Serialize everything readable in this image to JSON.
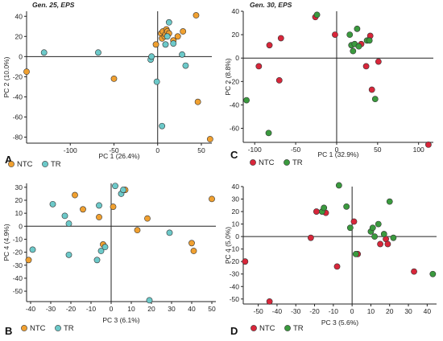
{
  "colors": {
    "NTC_orange": "#F0A030",
    "TR_teal": "#6CC9C9",
    "NTC_red": "#D8263A",
    "TR_green": "#3A9A3E",
    "axis": "#222222"
  },
  "chart_data": [
    {
      "panel_label": "A",
      "type": "scatter",
      "title": "Gen. 25, EPS",
      "xlabel": "PC 1 (26.4%)",
      "ylabel": "PC 2 (10.0%)",
      "xlim": [
        -150,
        62
      ],
      "ylim": [
        -86,
        45
      ],
      "xticks": [
        -100,
        -50,
        0,
        50
      ],
      "yticks": [
        40,
        20,
        0,
        -20,
        -40,
        -60,
        -80
      ],
      "legend": [
        "NTC",
        "TR"
      ],
      "series": [
        {
          "name": "NTC",
          "color": "#F0A030",
          "points": [
            [
              -150,
              -15
            ],
            [
              -50,
              -22
            ],
            [
              -2,
              12
            ],
            [
              4,
              23
            ],
            [
              5,
              18
            ],
            [
              6,
              25
            ],
            [
              8,
              20
            ],
            [
              9,
              22
            ],
            [
              10,
              27
            ],
            [
              11,
              25
            ],
            [
              13,
              23
            ],
            [
              18,
              16
            ],
            [
              23,
              20
            ],
            [
              29,
              25
            ],
            [
              44,
              41
            ],
            [
              46,
              -45
            ],
            [
              60,
              -82
            ]
          ]
        },
        {
          "name": "TR",
          "color": "#6CC9C9",
          "points": [
            [
              -130,
              4
            ],
            [
              -68,
              4
            ],
            [
              -8,
              -3
            ],
            [
              -7,
              0
            ],
            [
              -1,
              -25
            ],
            [
              5,
              -69
            ],
            [
              9,
              12
            ],
            [
              11,
              20
            ],
            [
              13,
              34
            ],
            [
              18,
              13
            ],
            [
              28,
              2
            ],
            [
              32,
              -9
            ]
          ]
        }
      ]
    },
    {
      "panel_label": "B",
      "type": "scatter",
      "title": "",
      "xlabel": "PC 3 (6.1%)",
      "ylabel": "PC 4 (4.9%)",
      "xlim": [
        -42,
        52
      ],
      "ylim": [
        -58,
        33
      ],
      "xticks": [
        -40,
        -30,
        -20,
        -10,
        0,
        10,
        20,
        30,
        40,
        50
      ],
      "yticks": [
        30,
        20,
        10,
        0,
        -10,
        -20,
        -30,
        -40,
        -50
      ],
      "legend": [
        "NTC",
        "TR"
      ],
      "series": [
        {
          "name": "NTC",
          "color": "#F0A030",
          "points": [
            [
              -41,
              -26
            ],
            [
              -18,
              24
            ],
            [
              -14,
              13
            ],
            [
              -6,
              7
            ],
            [
              -4,
              -14
            ],
            [
              1,
              15
            ],
            [
              7,
              28
            ],
            [
              13,
              -3
            ],
            [
              18,
              6
            ],
            [
              40,
              -13
            ],
            [
              41,
              -19
            ],
            [
              50,
              21
            ]
          ]
        },
        {
          "name": "TR",
          "color": "#6CC9C9",
          "points": [
            [
              -39,
              -18
            ],
            [
              -29,
              17
            ],
            [
              -23,
              8
            ],
            [
              -21,
              2
            ],
            [
              -21,
              -22
            ],
            [
              -7,
              -26
            ],
            [
              -6,
              16
            ],
            [
              -5,
              -19
            ],
            [
              -3,
              -16
            ],
            [
              2,
              31
            ],
            [
              5,
              25
            ],
            [
              6,
              28
            ],
            [
              19,
              -57
            ],
            [
              29,
              -5
            ]
          ]
        }
      ]
    },
    {
      "panel_label": "C",
      "type": "scatter",
      "title": "Gen. 30, EPS",
      "xlabel": "PC 1 (32.9%)",
      "ylabel": "PC 2 (8.8%)",
      "xlim": [
        -114,
        118
      ],
      "ylim": [
        -72,
        40
      ],
      "xticks": [
        -100,
        -50,
        0,
        50,
        100
      ],
      "yticks": [
        40,
        20,
        0,
        -20,
        -40,
        -60
      ],
      "legend": [
        "NTC",
        "TR"
      ],
      "series": [
        {
          "name": "NTC",
          "color": "#D8263A",
          "points": [
            [
              -95,
              -7
            ],
            [
              -82,
              11
            ],
            [
              -68,
              17
            ],
            [
              -70,
              -19
            ],
            [
              -26,
              35
            ],
            [
              -2,
              20
            ],
            [
              30,
              12
            ],
            [
              36,
              -7
            ],
            [
              41,
              19
            ],
            [
              43,
              -27
            ],
            [
              51,
              -3
            ],
            [
              112,
              -74
            ]
          ]
        },
        {
          "name": "TR",
          "color": "#3A9A3E",
          "points": [
            [
              -110,
              -36
            ],
            [
              -83,
              -64
            ],
            [
              -24,
              37
            ],
            [
              16,
              20
            ],
            [
              18,
              11
            ],
            [
              20,
              6
            ],
            [
              22,
              12
            ],
            [
              25,
              25
            ],
            [
              27,
              10
            ],
            [
              37,
              15
            ],
            [
              40,
              15
            ],
            [
              47,
              -35
            ]
          ]
        }
      ]
    },
    {
      "panel_label": "D",
      "type": "scatter",
      "title": "",
      "xlabel": "PC 3 (5.6%)",
      "ylabel": "PC 4 (5.0%)",
      "xlim": [
        -58,
        45
      ],
      "ylim": [
        -54,
        40
      ],
      "xticks": [
        -50,
        -40,
        -30,
        -20,
        -10,
        0,
        10,
        20,
        30,
        40
      ],
      "yticks": [
        40,
        30,
        20,
        10,
        0,
        -10,
        -20,
        -30,
        -40,
        -50
      ],
      "legend": [
        "NTC",
        "TR"
      ],
      "series": [
        {
          "name": "NTC",
          "color": "#D8263A",
          "points": [
            [
              -57,
              -20
            ],
            [
              -44,
              -52
            ],
            [
              -22,
              -1
            ],
            [
              -19,
              20
            ],
            [
              -14,
              19
            ],
            [
              -8,
              -24
            ],
            [
              1,
              12
            ],
            [
              3,
              -14
            ],
            [
              15,
              -6
            ],
            [
              18,
              -2
            ],
            [
              19,
              -6
            ],
            [
              33,
              -28
            ]
          ]
        },
        {
          "name": "TR",
          "color": "#3A9A3E",
          "points": [
            [
              -16,
              20
            ],
            [
              -15,
              23
            ],
            [
              -7,
              41
            ],
            [
              -3,
              24
            ],
            [
              -1,
              7
            ],
            [
              2,
              -14
            ],
            [
              10,
              4
            ],
            [
              11,
              7
            ],
            [
              12,
              0
            ],
            [
              14,
              10
            ],
            [
              17,
              2
            ],
            [
              20,
              28
            ],
            [
              22,
              -1
            ],
            [
              43,
              -30
            ]
          ]
        }
      ]
    }
  ]
}
